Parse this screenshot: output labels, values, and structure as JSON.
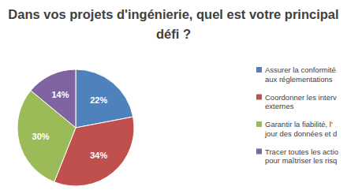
{
  "chart_data": {
    "type": "pie",
    "title": "Dans vos projets d'ingénierie, quel est votre principal défi ?",
    "categories": [
      "Assurer la conformité aux réglementations",
      "Coordonner les interv externes",
      "Garantir la fiabilité, l' jour des données et d",
      "Tracer toutes les actio pour maîtriser les risq"
    ],
    "values": [
      22,
      34,
      30,
      14
    ],
    "value_labels": [
      "22%",
      "34%",
      "30%",
      "14%"
    ],
    "colors": [
      "#4f81bd",
      "#c0504d",
      "#9bbb59",
      "#8064a2"
    ],
    "data_labels": true,
    "legend": "right"
  }
}
